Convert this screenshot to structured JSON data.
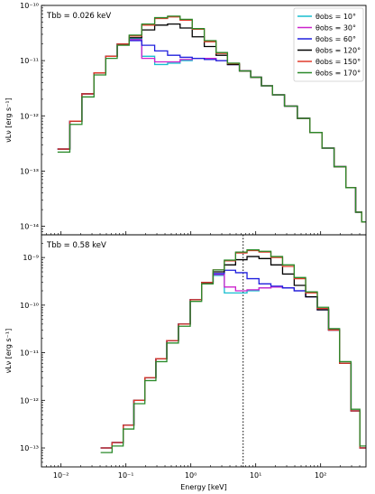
{
  "chart_data": {
    "type": "line",
    "step": true,
    "xlabel": "Energy [keV]",
    "xscale": "log",
    "xlim": [
      0.005,
      500
    ],
    "xticks": [
      0.01,
      0.1,
      1,
      10,
      100
    ],
    "xtick_labels": [
      "10⁻²",
      "10⁻¹",
      "10⁰",
      "10¹",
      "10²"
    ],
    "legend_entries": [
      {
        "label": "θobs = 10°",
        "color": "#17becf"
      },
      {
        "label": "θobs = 30°",
        "color": "#cc22cc"
      },
      {
        "label": "θobs = 60°",
        "color": "#1f1fdd"
      },
      {
        "label": "θobs = 120°",
        "color": "#000000"
      },
      {
        "label": "θobs = 150°",
        "color": "#e03a2a"
      },
      {
        "label": "θobs = 170°",
        "color": "#2a8a2a"
      }
    ],
    "legend_position": "top-right",
    "panels": [
      {
        "annotation": "Tbb = 0.026 keV",
        "ylabel": "νLν [erg s⁻¹]",
        "yscale": "log",
        "ylim": [
          7e-15,
          1e-10
        ],
        "yticks": [
          1e-14,
          1e-13,
          1e-12,
          1e-11,
          1e-10
        ],
        "ytick_labels": [
          "10⁻¹⁴",
          "10⁻¹³",
          "10⁻¹²",
          "10⁻¹¹",
          "10⁻¹⁰"
        ],
        "series": [
          {
            "color": "#17becf",
            "x": [
              0.011,
              0.017,
              0.026,
              0.04,
              0.06,
              0.09,
              0.14,
              0.22,
              0.35,
              0.55,
              0.85,
              1.3,
              2.0,
              3.0,
              4.5,
              7.0,
              10,
              15,
              22,
              35,
              55,
              85,
              130,
              200,
              300,
              400,
              460
            ],
            "y": [
              2.5e-13,
              8e-13,
              2.5e-12,
              6e-12,
              1.2e-11,
              2e-11,
              2.5e-11,
              1.2e-11,
              8.5e-12,
              9e-12,
              1e-11,
              1.1e-11,
              1.1e-11,
              1e-11,
              8.5e-12,
              6.5e-12,
              5e-12,
              3.5e-12,
              2.4e-12,
              1.5e-12,
              9e-13,
              5e-13,
              2.6e-13,
              1.2e-13,
              5e-14,
              1.8e-14,
              1.2e-14
            ]
          },
          {
            "color": "#cc22cc",
            "x": [
              0.011,
              0.017,
              0.026,
              0.04,
              0.06,
              0.09,
              0.14,
              0.22,
              0.35,
              0.55,
              0.85,
              1.3,
              2.0,
              3.0,
              4.5,
              7.0,
              10,
              15,
              22,
              35,
              55,
              85,
              130,
              200,
              300,
              400,
              460
            ],
            "y": [
              2.5e-13,
              8e-13,
              2.5e-12,
              6e-12,
              1.2e-11,
              2e-11,
              2.4e-11,
              1.1e-11,
              9.5e-12,
              9.5e-12,
              1.05e-11,
              1.1e-11,
              1.1e-11,
              1e-11,
              8.5e-12,
              6.5e-12,
              5e-12,
              3.5e-12,
              2.4e-12,
              1.5e-12,
              9e-13,
              5e-13,
              2.6e-13,
              1.2e-13,
              5e-14,
              1.8e-14,
              1.2e-14
            ]
          },
          {
            "color": "#1f1fdd",
            "x": [
              0.011,
              0.017,
              0.026,
              0.04,
              0.06,
              0.09,
              0.14,
              0.22,
              0.35,
              0.55,
              0.85,
              1.3,
              2.0,
              3.0,
              4.5,
              7.0,
              10,
              15,
              22,
              35,
              55,
              85,
              130,
              200,
              300,
              400,
              460
            ],
            "y": [
              2.5e-13,
              8e-13,
              2.5e-12,
              6e-12,
              1.2e-11,
              2e-11,
              2.3e-11,
              1.9e-11,
              1.5e-11,
              1.25e-11,
              1.15e-11,
              1.1e-11,
              1.05e-11,
              1e-11,
              8.5e-12,
              6.5e-12,
              5e-12,
              3.5e-12,
              2.4e-12,
              1.5e-12,
              9e-13,
              5e-13,
              2.6e-13,
              1.2e-13,
              5e-14,
              1.8e-14,
              1.2e-14
            ]
          },
          {
            "color": "#000000",
            "x": [
              0.011,
              0.017,
              0.026,
              0.04,
              0.06,
              0.09,
              0.14,
              0.22,
              0.35,
              0.55,
              0.85,
              1.3,
              2.0,
              3.0,
              4.5,
              7.0,
              10,
              15,
              22,
              35,
              55,
              85,
              130,
              200,
              300,
              400,
              460
            ],
            "y": [
              2.5e-13,
              8e-13,
              2.5e-12,
              6e-12,
              1.2e-11,
              2e-11,
              2.6e-11,
              3.6e-11,
              4.4e-11,
              4.6e-11,
              3.9e-11,
              2.7e-11,
              1.8e-11,
              1.25e-11,
              8.5e-12,
              6.5e-12,
              5e-12,
              3.5e-12,
              2.4e-12,
              1.5e-12,
              9e-13,
              5e-13,
              2.6e-13,
              1.2e-13,
              5e-14,
              1.8e-14,
              1.2e-14
            ]
          },
          {
            "color": "#e03a2a",
            "x": [
              0.011,
              0.017,
              0.026,
              0.04,
              0.06,
              0.09,
              0.14,
              0.22,
              0.35,
              0.55,
              0.85,
              1.3,
              2.0,
              3.0,
              4.5,
              7.0,
              10,
              15,
              22,
              35,
              55,
              85,
              130,
              200,
              300,
              400,
              460
            ],
            "y": [
              2.5e-13,
              8e-13,
              2.5e-12,
              6e-12,
              1.2e-11,
              2e-11,
              2.8e-11,
              4.4e-11,
              5.8e-11,
              6.2e-11,
              5.4e-11,
              3.7e-11,
              2.2e-11,
              1.35e-11,
              8.8e-12,
              6.5e-12,
              5e-12,
              3.5e-12,
              2.4e-12,
              1.5e-12,
              9e-13,
              5e-13,
              2.6e-13,
              1.2e-13,
              5e-14,
              1.8e-14,
              1.2e-14
            ]
          },
          {
            "color": "#2a8a2a",
            "x": [
              0.011,
              0.017,
              0.026,
              0.04,
              0.06,
              0.09,
              0.14,
              0.22,
              0.35,
              0.55,
              0.85,
              1.3,
              2.0,
              3.0,
              4.5,
              7.0,
              10,
              15,
              22,
              35,
              55,
              85,
              130,
              200,
              300,
              400,
              460
            ],
            "y": [
              2.2e-13,
              7e-13,
              2.2e-12,
              5.5e-12,
              1.1e-11,
              1.9e-11,
              2.9e-11,
              4.6e-11,
              6e-11,
              6.4e-11,
              5.6e-11,
              3.8e-11,
              2.3e-11,
              1.4e-11,
              9e-12,
              6.5e-12,
              5e-12,
              3.5e-12,
              2.4e-12,
              1.5e-12,
              9e-13,
              5e-13,
              2.6e-13,
              1.2e-13,
              5e-14,
              1.8e-14,
              1.2e-14
            ]
          }
        ]
      },
      {
        "annotation": "Tbb = 0.58 keV",
        "ylabel": "νLν [erg s⁻¹]",
        "yscale": "log",
        "ylim": [
          4e-14,
          3e-09
        ],
        "yticks": [
          1e-13,
          1e-12,
          1e-11,
          1e-10,
          1e-09
        ],
        "ytick_labels": [
          "10⁻¹³",
          "10⁻¹²",
          "10⁻¹¹",
          "10⁻¹⁰",
          "10⁻⁹"
        ],
        "vline_x": 6.4,
        "series": [
          {
            "color": "#17becf",
            "x": [
              0.05,
              0.075,
              0.11,
              0.16,
              0.24,
              0.35,
              0.52,
              0.8,
              1.2,
              1.8,
              2.7,
              4.0,
              6.0,
              9.0,
              14,
              21,
              32,
              48,
              72,
              110,
              160,
              240,
              360,
              450
            ],
            "y": [
              1e-13,
              1.3e-13,
              3e-13,
              1e-12,
              3e-12,
              7.5e-12,
              1.8e-11,
              4e-11,
              1.3e-10,
              2.8e-10,
              4.2e-10,
              1.8e-10,
              1.8e-10,
              2e-10,
              2.3e-10,
              2.4e-10,
              2.3e-10,
              2e-10,
              1.5e-10,
              8e-11,
              3e-11,
              6e-12,
              6e-13,
              1e-13
            ]
          },
          {
            "color": "#cc22cc",
            "x": [
              0.05,
              0.075,
              0.11,
              0.16,
              0.24,
              0.35,
              0.52,
              0.8,
              1.2,
              1.8,
              2.7,
              4.0,
              6.0,
              9.0,
              14,
              21,
              32,
              48,
              72,
              110,
              160,
              240,
              360,
              450
            ],
            "y": [
              1e-13,
              1.3e-13,
              3e-13,
              1e-12,
              3e-12,
              7.5e-12,
              1.8e-11,
              4e-11,
              1.3e-10,
              2.9e-10,
              4.4e-10,
              2.4e-10,
              2e-10,
              2.1e-10,
              2.3e-10,
              2.4e-10,
              2.3e-10,
              2e-10,
              1.5e-10,
              8e-11,
              3e-11,
              6e-12,
              6e-13,
              1e-13
            ]
          },
          {
            "color": "#1f1fdd",
            "x": [
              0.05,
              0.075,
              0.11,
              0.16,
              0.24,
              0.35,
              0.52,
              0.8,
              1.2,
              1.8,
              2.7,
              4.0,
              6.0,
              9.0,
              14,
              21,
              32,
              48,
              72,
              110,
              160,
              240,
              360,
              450
            ],
            "y": [
              1e-13,
              1.3e-13,
              3e-13,
              1e-12,
              3e-12,
              7.5e-12,
              1.8e-11,
              4e-11,
              1.3e-10,
              3e-10,
              4.6e-10,
              5.4e-10,
              4.8e-10,
              3.6e-10,
              2.8e-10,
              2.5e-10,
              2.3e-10,
              2e-10,
              1.5e-10,
              8e-11,
              3e-11,
              6e-12,
              6e-13,
              1e-13
            ]
          },
          {
            "color": "#000000",
            "x": [
              0.05,
              0.075,
              0.11,
              0.16,
              0.24,
              0.35,
              0.52,
              0.8,
              1.2,
              1.8,
              2.7,
              4.0,
              6.0,
              9.0,
              14,
              21,
              32,
              48,
              72,
              110,
              160,
              240,
              360,
              450
            ],
            "y": [
              1e-13,
              1.3e-13,
              3e-13,
              1e-12,
              3e-12,
              7.5e-12,
              1.8e-11,
              4e-11,
              1.3e-10,
              3e-10,
              5e-10,
              7e-10,
              9e-10,
              1.05e-09,
              9.5e-10,
              7e-10,
              4.5e-10,
              2.6e-10,
              1.5e-10,
              8e-11,
              3e-11,
              6e-12,
              6e-13,
              1e-13
            ]
          },
          {
            "color": "#e03a2a",
            "x": [
              0.05,
              0.075,
              0.11,
              0.16,
              0.24,
              0.35,
              0.52,
              0.8,
              1.2,
              1.8,
              2.7,
              4.0,
              6.0,
              9.0,
              14,
              21,
              32,
              48,
              72,
              110,
              160,
              240,
              360,
              450
            ],
            "y": [
              1e-13,
              1.3e-13,
              3e-13,
              1e-12,
              3e-12,
              7.5e-12,
              1.8e-11,
              4e-11,
              1.3e-10,
              3e-10,
              5.5e-10,
              8.5e-10,
              1.25e-09,
              1.4e-09,
              1.3e-09,
              1e-09,
              6.5e-10,
              3.6e-10,
              1.8e-10,
              8.5e-11,
              3e-11,
              6e-12,
              6e-13,
              1e-13
            ]
          },
          {
            "color": "#2a8a2a",
            "x": [
              0.05,
              0.075,
              0.11,
              0.16,
              0.24,
              0.35,
              0.52,
              0.8,
              1.2,
              1.8,
              2.7,
              4.0,
              6.0,
              9.0,
              14,
              21,
              32,
              48,
              72,
              110,
              160,
              240,
              360,
              450
            ],
            "y": [
              8e-14,
              1.1e-13,
              2.5e-13,
              8.5e-13,
              2.6e-12,
              6.5e-12,
              1.6e-11,
              3.6e-11,
              1.2e-10,
              2.8e-10,
              5.5e-10,
              8.8e-10,
              1.3e-09,
              1.45e-09,
              1.35e-09,
              1.05e-09,
              7e-10,
              3.8e-10,
              1.9e-10,
              9e-11,
              3.2e-11,
              6.5e-12,
              6.5e-13,
              1.1e-13
            ]
          }
        ]
      }
    ]
  }
}
